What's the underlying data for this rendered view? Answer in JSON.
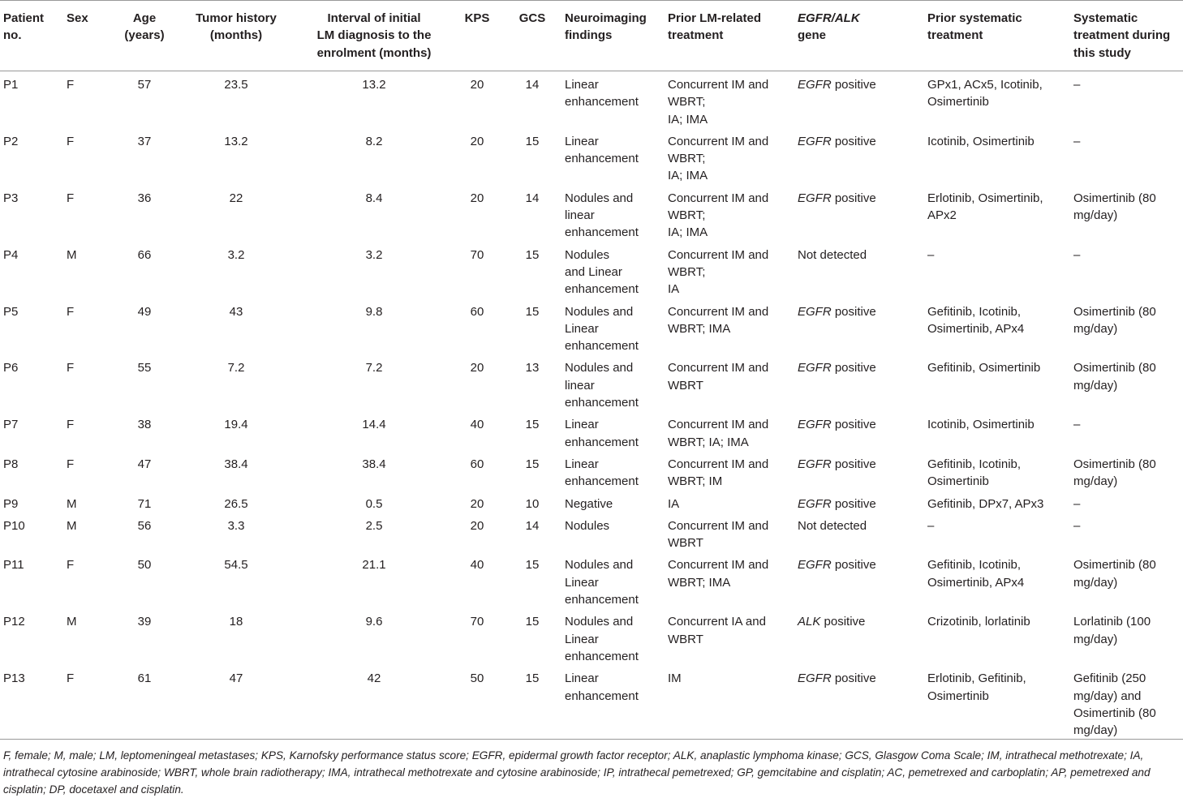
{
  "table": {
    "headers": [
      "Patient\nno.",
      "Sex",
      "Age\n(years)",
      "Tumor history\n(months)",
      "Interval of initial\nLM diagnosis to the\nenrolment (months)",
      "KPS",
      "GCS",
      "Neuroimaging\nfindings",
      "Prior LM-related\ntreatment",
      {
        "gene": "EGFR/ALK",
        "text": "gene"
      },
      "Prior systematic\ntreatment",
      "Systematic\ntreatment during\nthis study"
    ],
    "rows": [
      [
        "P1",
        "F",
        "57",
        "23.5",
        "13.2",
        "20",
        "14",
        "Linear enhancement",
        "Concurrent IM and WBRT;\nIA; IMA",
        {
          "gene": "EGFR",
          "status": "positive"
        },
        "GPx1, ACx5, Icotinib, Osimertinib",
        "–"
      ],
      [
        "P2",
        "F",
        "37",
        "13.2",
        "8.2",
        "20",
        "15",
        "Linear enhancement",
        "Concurrent IM and WBRT;\nIA; IMA",
        {
          "gene": "EGFR",
          "status": "positive"
        },
        "Icotinib, Osimertinib",
        "–"
      ],
      [
        "P3",
        "F",
        "36",
        "22",
        "8.4",
        "20",
        "14",
        "Nodules and linear enhancement",
        "Concurrent IM and WBRT;\nIA; IMA",
        {
          "gene": "EGFR",
          "status": "positive"
        },
        "Erlotinib, Osimertinib, APx2",
        "Osimertinib (80 mg/day)"
      ],
      [
        "P4",
        "M",
        "66",
        "3.2",
        "3.2",
        "70",
        "15",
        "Nodules\nand Linear enhancement",
        "Concurrent IM and WBRT;\nIA",
        "Not detected",
        "–",
        "–"
      ],
      [
        "P5",
        "F",
        "49",
        "43",
        "9.8",
        "60",
        "15",
        "Nodules and Linear enhancement",
        "Concurrent IM and WBRT; IMA",
        {
          "gene": "EGFR",
          "status": "positive"
        },
        "Gefitinib, Icotinib, Osimertinib, APx4",
        "Osimertinib (80 mg/day)"
      ],
      [
        "P6",
        "F",
        "55",
        "7.2",
        "7.2",
        "20",
        "13",
        "Nodules and linear enhancement",
        "Concurrent IM and WBRT",
        {
          "gene": "EGFR",
          "status": "positive"
        },
        "Gefitinib, Osimertinib",
        "Osimertinib (80 mg/day)"
      ],
      [
        "P7",
        "F",
        "38",
        "19.4",
        "14.4",
        "40",
        "15",
        "Linear enhancement",
        "Concurrent IM and WBRT; IA; IMA",
        {
          "gene": "EGFR",
          "status": "positive"
        },
        "Icotinib, Osimertinib",
        "–"
      ],
      [
        "P8",
        "F",
        "47",
        "38.4",
        "38.4",
        "60",
        "15",
        "Linear enhancement",
        "Concurrent IM and WBRT; IM",
        {
          "gene": "EGFR",
          "status": "positive"
        },
        "Gefitinib, Icotinib, Osimertinib",
        "Osimertinib (80 mg/day)"
      ],
      [
        "P9",
        "M",
        "71",
        "26.5",
        "0.5",
        "20",
        "10",
        "Negative",
        "IA",
        {
          "gene": "EGFR",
          "status": "positive"
        },
        "Gefitinib, DPx7, APx3",
        "–"
      ],
      [
        "P10",
        "M",
        "56",
        "3.3",
        "2.5",
        "20",
        "14",
        "Nodules",
        "Concurrent IM and WBRT",
        "Not detected",
        "–",
        "–"
      ],
      [
        "P11",
        "F",
        "50",
        "54.5",
        "21.1",
        "40",
        "15",
        "Nodules and Linear enhancement",
        "Concurrent IM and WBRT; IMA",
        {
          "gene": "EGFR",
          "status": "positive"
        },
        "Gefitinib, Icotinib, Osimertinib, APx4",
        "Osimertinib (80 mg/day)"
      ],
      [
        "P12",
        "M",
        "39",
        "18",
        "9.6",
        "70",
        "15",
        "Nodules and Linear enhancement",
        "Concurrent IA and WBRT",
        {
          "gene": "ALK",
          "status": "positive"
        },
        "Crizotinib, lorlatinib",
        "Lorlatinib (100 mg/day)"
      ],
      [
        "P13",
        "F",
        "61",
        "47",
        "42",
        "50",
        "15",
        "Linear enhancement",
        "IM",
        {
          "gene": "EGFR",
          "status": "positive"
        },
        "Erlotinib, Gefitinib, Osimertinib",
        "Gefitinib (250 mg/day) and Osimertinib (80 mg/day)"
      ]
    ],
    "footnote": "F, female; M, male; LM, leptomeningeal metastases; KPS, Karnofsky performance status score; EGFR, epidermal growth factor receptor; ALK, anaplastic lymphoma kinase; GCS, Glasgow Coma Scale; IM, intrathecal methotrexate; IA, intrathecal cytosine arabinoside; WBRT, whole brain radiotherapy; IMA, intrathecal methotrexate and cytosine arabinoside; IP, intrathecal pemetrexed; GP, gemcitabine and cisplatin; AC, pemetrexed and carboplatin; AP, pemetrexed and cisplatin; DP, docetaxel and cisplatin."
  }
}
